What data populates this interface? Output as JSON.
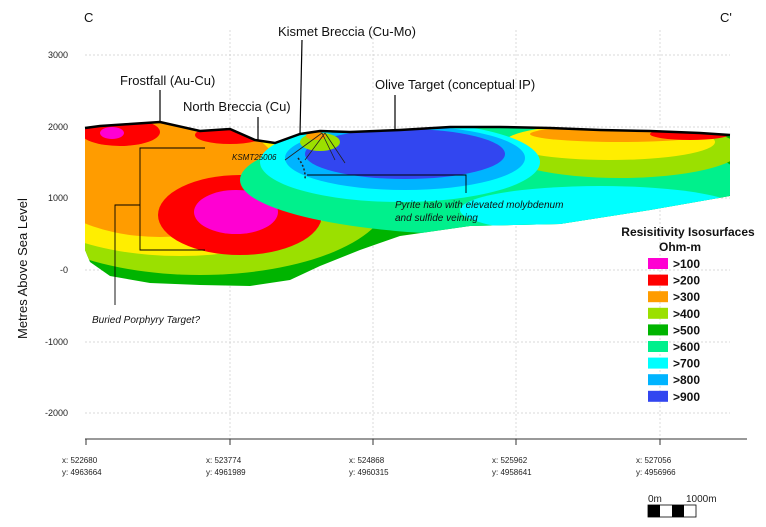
{
  "section": {
    "start_label": "C",
    "end_label": "C'"
  },
  "y_axis": {
    "label": "Metres Above Sea Level",
    "ticks": [
      "3000",
      "2000",
      "1000",
      "-0",
      "-1000",
      "-2000"
    ]
  },
  "x_axis": {
    "ticks": [
      {
        "x": "x: 522680",
        "y": "y: 4963664"
      },
      {
        "x": "x: 523774",
        "y": "y: 4961989"
      },
      {
        "x": "x: 524868",
        "y": "y: 4960315"
      },
      {
        "x": "x: 525962",
        "y": "y: 4958641"
      },
      {
        "x": "x: 527056",
        "y": "y: 4956966"
      }
    ]
  },
  "annotations": {
    "kismet": "Kismet Breccia (Cu-Mo)",
    "frostfall": "Frostfall (Au-Cu)",
    "north_breccia": "North Breccia (Cu)",
    "olive": "Olive Target (conceptual IP)",
    "drillhole": "KSMT25006",
    "pyrite_line1": "Pyrite halo with elevated molybdenum",
    "pyrite_line2": "and sulfide veining",
    "porphyry": "Buried Porphyry Target?"
  },
  "legend": {
    "title": "Resisitivity Isosurfaces",
    "unit": "Ohm-m",
    "items": [
      {
        "label": ">100",
        "color": "#ff00d2"
      },
      {
        "label": ">200",
        "color": "#ff0000"
      },
      {
        "label": ">300",
        "color": "#ff9c00"
      },
      {
        "label": ">400",
        "color": "#9be000"
      },
      {
        "label": ">500",
        "color": "#00b400"
      },
      {
        "label": ">600",
        "color": "#00f08c"
      },
      {
        "label": ">700",
        "color": "#00ffff"
      },
      {
        "label": ">800",
        "color": "#00b4ff"
      },
      {
        "label": ">900",
        "color": "#3246f0"
      }
    ]
  },
  "scale_bar": {
    "start": "0m",
    "end": "1000m"
  }
}
